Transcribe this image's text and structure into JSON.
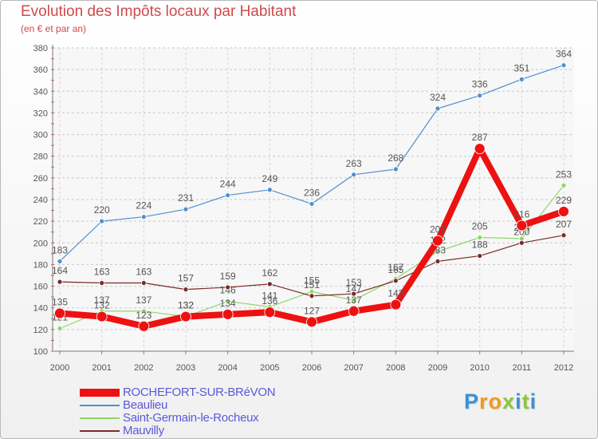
{
  "title": "Evolution des Impôts locaux par Habitant",
  "subtitle": "(en € et par an)",
  "logo": {
    "text": "Proxiti",
    "letters": [
      {
        "ch": "P",
        "color": "#3d8fd6"
      },
      {
        "ch": "r",
        "color": "#f29a1c"
      },
      {
        "ch": "o",
        "color": "#f29a1c"
      },
      {
        "ch": "x",
        "color": "#8cc63f"
      },
      {
        "ch": "i",
        "color": "#3d8fd6"
      },
      {
        "ch": "t",
        "color": "#8cc63f"
      },
      {
        "ch": "i",
        "color": "#3d8fd6"
      }
    ]
  },
  "chart_data": {
    "type": "line",
    "title": "Evolution des Impôts locaux par Habitant",
    "subtitle": "(en € et par an)",
    "xlabel": "",
    "ylabel": "",
    "categories": [
      "2000",
      "2001",
      "2002",
      "2003",
      "2004",
      "2005",
      "2006",
      "2007",
      "2008",
      "2009",
      "2010",
      "2011",
      "2012"
    ],
    "ylim": [
      100,
      380
    ],
    "yticks": [
      100,
      120,
      140,
      160,
      180,
      200,
      220,
      240,
      260,
      280,
      300,
      320,
      340,
      360,
      380
    ],
    "grid": "horizontal dashed",
    "legend_position": "bottom-left",
    "series": [
      {
        "name": "Beaulieu",
        "color": "#4f8fd0",
        "values": [
          183,
          220,
          224,
          231,
          244,
          249,
          236,
          263,
          268,
          324,
          336,
          351,
          364
        ],
        "labels": [
          "183",
          "220",
          "224",
          "231",
          "244",
          "249",
          "236",
          "263",
          "268",
          "324",
          "336",
          "351",
          "364"
        ]
      },
      {
        "name": "Saint-Germain-le-Rocheux",
        "color": "#8ed66a",
        "values": [
          121,
          137,
          137,
          132,
          146,
          141,
          155,
          147,
          167,
          192,
          205,
          204,
          253
        ],
        "labels": [
          "121",
          "137",
          "137",
          "132",
          "146",
          "141",
          "155",
          "147",
          "167",
          "192",
          "205",
          "204",
          "253"
        ]
      },
      {
        "name": "Mauvilly",
        "color": "#7a2a2a",
        "values": [
          164,
          163,
          163,
          157,
          159,
          162,
          151,
          153,
          165,
          183,
          188,
          200,
          207
        ],
        "labels": [
          "164",
          "163",
          "163",
          "157",
          "159",
          "162",
          "151",
          "153",
          "165",
          "183",
          "188",
          "200",
          "207"
        ]
      },
      {
        "name": "ROCHEFORT-SUR-BRéVON",
        "color": "#ee1111",
        "values": [
          135,
          132,
          123,
          132,
          134,
          136,
          127,
          137,
          143,
          202,
          287,
          216,
          229
        ],
        "labels": [
          "135",
          "132",
          "123",
          "132",
          "134",
          "136",
          "127",
          "137",
          "143",
          "202",
          "287",
          "216",
          "229"
        ]
      }
    ],
    "legend": [
      "ROCHEFORT-SUR-BRéVON",
      "Beaulieu",
      "Saint-Germain-le-Rocheux",
      "Mauvilly"
    ]
  }
}
